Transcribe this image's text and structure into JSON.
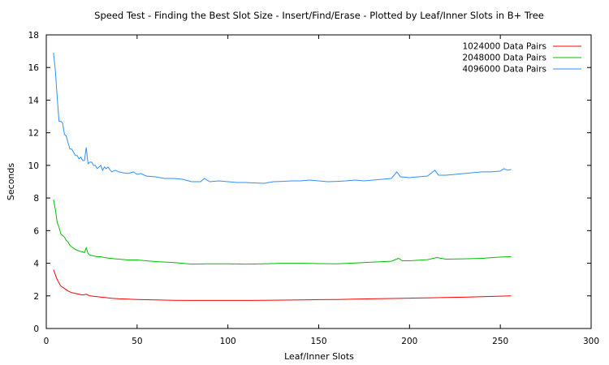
{
  "chart_data": {
    "type": "line",
    "title": "Speed Test - Finding the Best Slot Size - Insert/Find/Erase - Plotted by Leaf/Inner Slots in B+ Tree",
    "xlabel": "Leaf/Inner Slots",
    "ylabel": "Seconds",
    "xlim": [
      0,
      300
    ],
    "ylim": [
      0,
      18
    ],
    "xticks": [
      0,
      50,
      100,
      150,
      200,
      250,
      300
    ],
    "yticks": [
      0,
      2,
      4,
      6,
      8,
      10,
      12,
      14,
      16,
      18
    ],
    "grid": false,
    "legend_position": "top-right",
    "series": [
      {
        "name": "1024000 Data Pairs",
        "color": "#ff0000",
        "x": [
          4,
          6,
          8,
          10,
          12,
          14,
          16,
          18,
          20,
          22,
          24,
          28,
          32,
          36,
          40,
          45,
          50,
          60,
          70,
          80,
          90,
          100,
          110,
          120,
          130,
          140,
          150,
          160,
          170,
          180,
          190,
          200,
          210,
          220,
          230,
          240,
          256
        ],
        "y": [
          3.6,
          3.0,
          2.6,
          2.45,
          2.3,
          2.2,
          2.15,
          2.1,
          2.05,
          2.1,
          2.0,
          1.95,
          1.9,
          1.85,
          1.82,
          1.8,
          1.78,
          1.75,
          1.73,
          1.72,
          1.72,
          1.72,
          1.72,
          1.73,
          1.74,
          1.75,
          1.77,
          1.78,
          1.8,
          1.82,
          1.84,
          1.86,
          1.88,
          1.9,
          1.92,
          1.95,
          2.0
        ]
      },
      {
        "name": "2048000 Data Pairs",
        "color": "#00c000",
        "x": [
          4,
          5,
          6,
          7,
          8,
          9,
          10,
          11,
          12,
          13,
          14,
          16,
          18,
          20,
          21,
          22,
          23,
          24,
          26,
          28,
          30,
          32,
          35,
          40,
          45,
          50,
          60,
          70,
          80,
          90,
          100,
          110,
          120,
          130,
          140,
          150,
          160,
          170,
          180,
          190,
          194,
          196,
          200,
          210,
          215,
          220,
          230,
          240,
          250,
          256
        ],
        "y": [
          7.9,
          7.3,
          6.5,
          6.2,
          5.8,
          5.7,
          5.6,
          5.4,
          5.3,
          5.1,
          5.0,
          4.85,
          4.75,
          4.7,
          4.65,
          4.95,
          4.6,
          4.5,
          4.45,
          4.4,
          4.4,
          4.35,
          4.3,
          4.25,
          4.2,
          4.2,
          4.1,
          4.05,
          3.95,
          3.97,
          3.97,
          3.95,
          3.97,
          4.0,
          4.0,
          3.98,
          3.97,
          4.02,
          4.07,
          4.12,
          4.3,
          4.15,
          4.15,
          4.22,
          4.35,
          4.25,
          4.27,
          4.3,
          4.38,
          4.4
        ]
      },
      {
        "name": "4096000 Data Pairs",
        "color": "#2f8fff",
        "x": [
          4,
          5,
          6,
          7,
          8,
          9,
          10,
          11,
          12,
          13,
          14,
          15,
          16,
          17,
          18,
          19,
          20,
          21,
          22,
          23,
          24,
          25,
          26,
          27,
          28,
          29,
          30,
          31,
          32,
          33,
          34,
          36,
          38,
          40,
          42,
          45,
          48,
          50,
          52,
          55,
          60,
          65,
          70,
          75,
          80,
          85,
          87,
          90,
          95,
          100,
          105,
          110,
          115,
          120,
          125,
          130,
          135,
          140,
          145,
          150,
          155,
          160,
          165,
          170,
          175,
          180,
          185,
          190,
          193,
          195,
          200,
          205,
          210,
          214,
          216,
          220,
          225,
          230,
          235,
          240,
          245,
          250,
          252,
          254,
          256
        ],
        "y": [
          16.9,
          15.8,
          14.2,
          12.7,
          12.7,
          12.6,
          11.9,
          11.8,
          11.4,
          11.0,
          11.0,
          10.8,
          10.6,
          10.6,
          10.4,
          10.5,
          10.3,
          10.3,
          11.1,
          10.1,
          10.2,
          10.2,
          10.0,
          10.0,
          9.8,
          9.9,
          10.0,
          9.7,
          9.9,
          9.8,
          9.9,
          9.6,
          9.7,
          9.6,
          9.55,
          9.5,
          9.6,
          9.45,
          9.5,
          9.35,
          9.3,
          9.2,
          9.2,
          9.15,
          9.0,
          9.0,
          9.2,
          9.0,
          9.05,
          9.0,
          8.95,
          8.95,
          8.92,
          8.9,
          9.0,
          9.02,
          9.05,
          9.05,
          9.1,
          9.05,
          9.0,
          9.02,
          9.05,
          9.1,
          9.05,
          9.1,
          9.15,
          9.2,
          9.6,
          9.3,
          9.25,
          9.3,
          9.35,
          9.7,
          9.4,
          9.4,
          9.45,
          9.5,
          9.55,
          9.6,
          9.6,
          9.65,
          9.8,
          9.7,
          9.75
        ]
      }
    ]
  }
}
